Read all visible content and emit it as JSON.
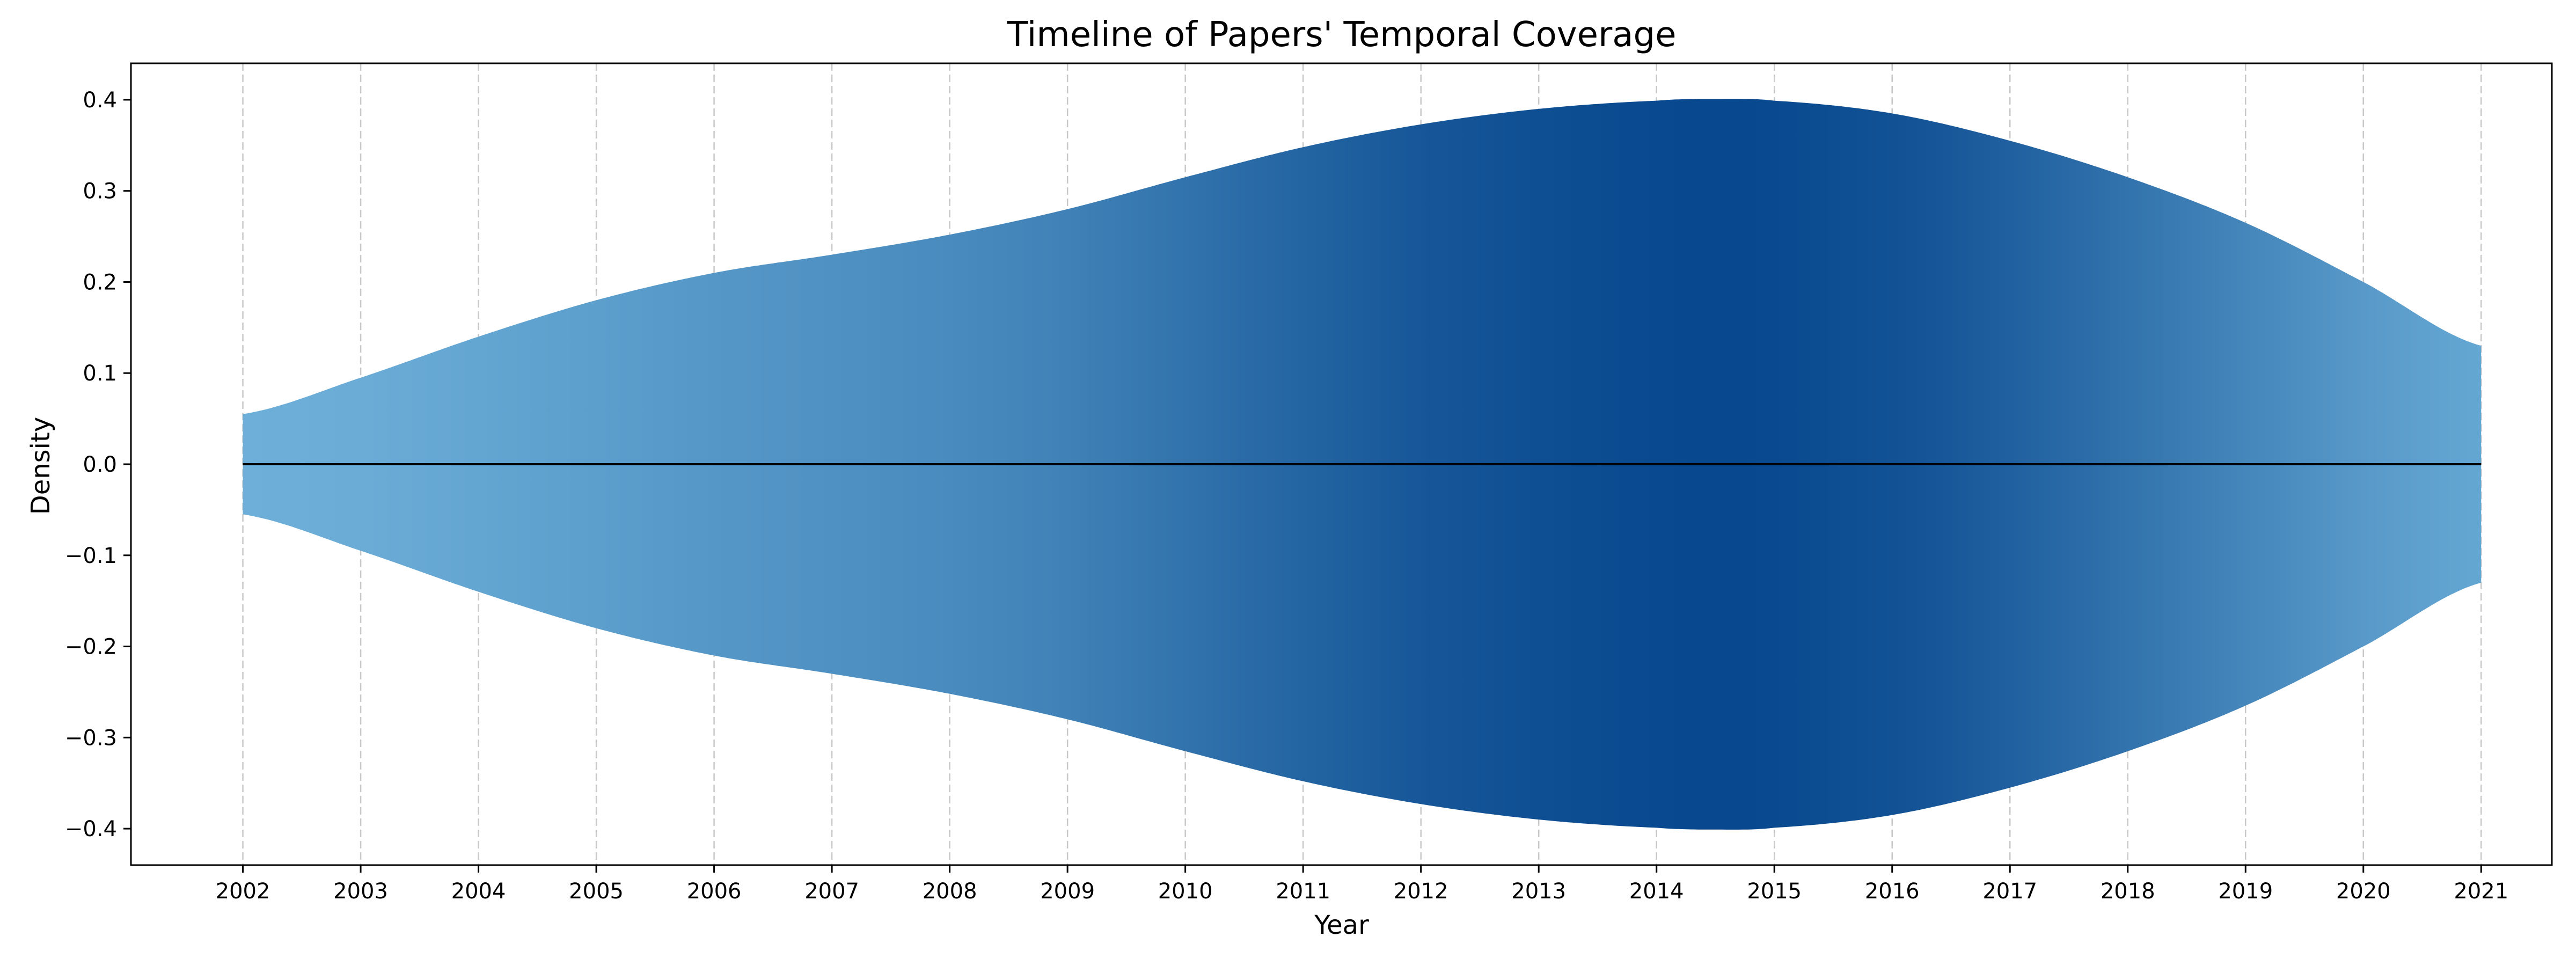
{
  "chart_data": {
    "type": "area",
    "title": "Timeline of Papers' Temporal Coverage",
    "xlabel": "Year",
    "ylabel": "Density",
    "xlim": [
      2001.05,
      2021.6
    ],
    "ylim": [
      -0.44,
      0.44
    ],
    "x_ticks": [
      2002,
      2003,
      2004,
      2005,
      2006,
      2007,
      2008,
      2009,
      2010,
      2011,
      2012,
      2013,
      2014,
      2015,
      2016,
      2017,
      2018,
      2019,
      2020,
      2021
    ],
    "y_ticks": [
      -0.4,
      -0.3,
      -0.2,
      -0.1,
      0.0,
      0.1,
      0.2,
      0.3,
      0.4
    ],
    "y_tick_labels": [
      "−0.4",
      "−0.3",
      "−0.2",
      "−0.1",
      "0.0",
      "0.1",
      "0.2",
      "0.3",
      "0.4"
    ],
    "grid": "x-dashed",
    "symmetric": true,
    "colormap": "Blues",
    "series": [
      {
        "x": [
          2002,
          2003,
          2004,
          2005,
          2006,
          2007,
          2008,
          2009,
          2010,
          2011,
          2012,
          2013,
          2014,
          2014.5,
          2015,
          2016,
          2017,
          2018,
          2019,
          2020,
          2021
        ],
        "values": [
          0.055,
          0.095,
          0.14,
          0.18,
          0.21,
          0.23,
          0.252,
          0.28,
          0.315,
          0.348,
          0.373,
          0.39,
          0.399,
          0.401,
          0.399,
          0.385,
          0.355,
          0.315,
          0.265,
          0.2,
          0.13
        ]
      }
    ],
    "colors": {
      "light": "#6eb0d9",
      "dark": "#08488e",
      "centerline": "#000000",
      "grid": "#c8c8c8"
    }
  }
}
